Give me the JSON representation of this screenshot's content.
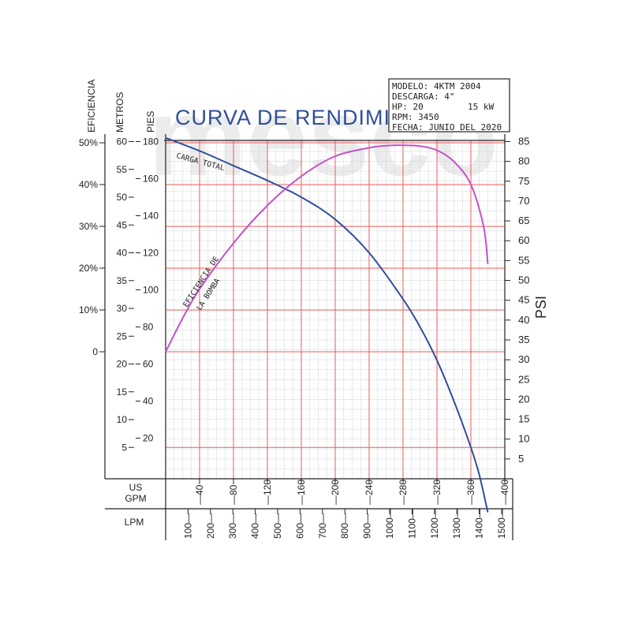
{
  "title": "CURVA DE RENDIMIENTO",
  "specs": {
    "modelo": "MODELO: 4KTM 2004",
    "descarga": "DESCARGA: 4\"",
    "hp": "HP: 20",
    "kw": "15 kW",
    "rpm": "RPM: 3450",
    "fecha": "FECHA: JUNIO DEL 2020"
  },
  "watermark": "mesco",
  "colors": {
    "carga_total": "#2f4f9a",
    "eficiencia": "#c252c8",
    "grid_minor": "#cfd3d8",
    "grid_major": "#ef5a5a",
    "title": "#2f4f9a"
  },
  "chart_data": {
    "type": "line",
    "axes": {
      "eficiencia": {
        "title": "EFICIENCIA",
        "ticks": [
          "50%",
          "40%",
          "30%",
          "20%",
          "10%",
          "0"
        ],
        "range": [
          0,
          50
        ]
      },
      "metros": {
        "title": "METROS",
        "ticks": [
          "60",
          "55",
          "50",
          "45",
          "40",
          "35",
          "30",
          "25",
          "20",
          "15",
          "10",
          "5"
        ],
        "range": [
          0,
          60
        ]
      },
      "pies": {
        "title": "PIES",
        "ticks": [
          "180",
          "160",
          "140",
          "120",
          "100",
          "80",
          "60",
          "40",
          "20"
        ],
        "range": [
          0,
          180
        ]
      },
      "psi": {
        "title": "PSI",
        "ticks": [
          "85",
          "80",
          "75",
          "70",
          "65",
          "60",
          "55",
          "50",
          "45",
          "40",
          "35",
          "30",
          "25",
          "20",
          "15",
          "10",
          "5"
        ],
        "range": [
          0,
          85
        ]
      },
      "gpm": {
        "title": "US\nGPM",
        "ticks": [
          "40",
          "80",
          "120",
          "160",
          "200",
          "240",
          "280",
          "320",
          "360",
          "400"
        ],
        "range": [
          0,
          400
        ]
      },
      "lpm": {
        "title": "LPM",
        "ticks": [
          "100",
          "200",
          "300",
          "400",
          "500",
          "600",
          "700",
          "800",
          "900",
          "1000",
          "1100",
          "1200",
          "1300",
          "1400",
          "1500"
        ]
      }
    },
    "series": [
      {
        "name": "CARGA TOTAL",
        "axis": "pies",
        "x": [
          0,
          40,
          80,
          120,
          160,
          200,
          240,
          280,
          300,
          320,
          340,
          360,
          370,
          380
        ],
        "y": [
          182,
          175,
          167,
          159,
          150,
          138,
          120,
          95,
          80,
          62,
          40,
          15,
          0,
          -20
        ]
      },
      {
        "name": "EFICIENCIA DE LA BOMBA",
        "axis": "eficiencia",
        "x": [
          0,
          20,
          40,
          80,
          120,
          160,
          200,
          240,
          260,
          280,
          300,
          320,
          340,
          360,
          375,
          380
        ],
        "y": [
          0,
          8,
          15,
          26,
          35,
          42,
          46.8,
          48.8,
          49.3,
          49.4,
          49.2,
          48.2,
          45.5,
          40,
          30,
          21
        ]
      }
    ]
  }
}
